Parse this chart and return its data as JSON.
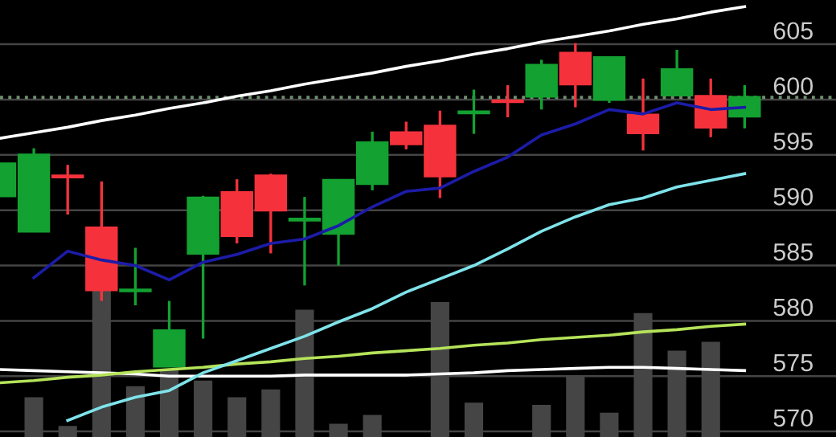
{
  "chart_data": {
    "type": "candlestick",
    "categories": [
      null,
      null,
      null,
      null,
      null,
      null,
      null,
      null,
      null,
      null,
      null,
      null,
      null,
      null,
      null,
      null,
      null,
      null,
      null,
      null,
      null,
      null,
      null
    ],
    "ohlc": [
      [
        591.3,
        594.2,
        591.3,
        594.2
      ],
      [
        588.1,
        595.6,
        588.1,
        595.0
      ],
      [
        593.1,
        594.1,
        589.6,
        593.0
      ],
      [
        588.4,
        592.6,
        581.8,
        582.8
      ],
      [
        582.7,
        586.6,
        581.4,
        582.8
      ],
      [
        575.9,
        581.8,
        575.9,
        579.1
      ],
      [
        586.1,
        591.3,
        578.4,
        591.1
      ],
      [
        591.6,
        592.8,
        587.0,
        587.7
      ],
      [
        593.1,
        593.3,
        586.1,
        590.0
      ],
      [
        589.1,
        591.2,
        583.2,
        589.2
      ],
      [
        587.9,
        592.7,
        585.0,
        592.7
      ],
      [
        592.4,
        597.1,
        591.8,
        596.1
      ],
      [
        597.0,
        598.0,
        595.5,
        596.0
      ],
      [
        597.6,
        599.0,
        591.1,
        593.1
      ],
      [
        598.8,
        600.9,
        596.9,
        598.9
      ],
      [
        599.9,
        601.3,
        598.4,
        599.8
      ],
      [
        600.3,
        603.6,
        599.1,
        603.1
      ],
      [
        604.2,
        605.1,
        599.3,
        601.4
      ],
      [
        600.0,
        603.8,
        599.7,
        603.8
      ],
      [
        598.6,
        601.9,
        595.4,
        597.0
      ],
      [
        600.4,
        604.5,
        600.4,
        602.7
      ],
      [
        600.3,
        601.9,
        596.6,
        597.5
      ],
      [
        598.5,
        601.3,
        597.4,
        600.2
      ]
    ],
    "colors": [
      "#13a131",
      "#13a131",
      "#f5323c",
      "#f5323c",
      "#13a131",
      "#13a131",
      "#13a131",
      "#f5323c",
      "#f5323c",
      "#13a131",
      "#13a131",
      "#13a131",
      "#f5323c",
      "#f5323c",
      "#13a131",
      "#f5323c",
      "#13a131",
      "#f5323c",
      "#13a131",
      "#f5323c",
      "#13a131",
      "#f5323c",
      "#13a131"
    ],
    "series": [
      {
        "type": "bar",
        "color": "#454545",
        "values": [
          null,
          573.1,
          570.5,
          582.8,
          574.1,
          575.6,
          574.6,
          573.1,
          573.8,
          581.0,
          570.7,
          571.5,
          null,
          581.7,
          572.6,
          null,
          572.4,
          575.1,
          571.7,
          580.7,
          577.3,
          578.1,
          null
        ]
      },
      {
        "type": "line",
        "color": "#ffffff",
        "values": [
          575.6,
          575.5,
          575.4,
          575.3,
          575.2,
          575.0,
          575.0,
          575.0,
          575.0,
          575.1,
          575.1,
          575.1,
          575.1,
          575.2,
          575.3,
          575.5,
          575.6,
          575.7,
          575.8,
          575.8,
          575.7,
          575.6,
          575.5
        ]
      },
      {
        "type": "line",
        "color": "#b5e35a",
        "values": [
          574.4,
          574.6,
          574.9,
          575.1,
          575.4,
          575.6,
          575.8,
          576.1,
          576.3,
          576.6,
          576.8,
          577.1,
          577.3,
          577.5,
          577.8,
          578.0,
          578.3,
          578.5,
          578.7,
          579.0,
          579.2,
          579.5,
          579.7
        ]
      },
      {
        "type": "line",
        "color": "#7fe3ea",
        "values": [
          null,
          null,
          571.0,
          572.2,
          573.1,
          573.7,
          575.3,
          576.4,
          577.5,
          578.6,
          579.9,
          581.1,
          582.6,
          583.8,
          585.0,
          586.5,
          588.1,
          589.4,
          590.5,
          591.1,
          592.1,
          592.7,
          593.3
        ]
      },
      {
        "type": "line",
        "color": "#1c1ca8",
        "values": [
          null,
          583.9,
          586.3,
          585.5,
          585.0,
          583.7,
          585.3,
          586.0,
          587.0,
          587.4,
          588.6,
          590.3,
          591.7,
          592.0,
          593.5,
          594.8,
          596.8,
          597.8,
          599.1,
          598.7,
          599.7,
          599.1,
          599.3
        ]
      },
      {
        "type": "line",
        "color": "#ffffff",
        "values": [
          596.5,
          597.0,
          597.5,
          598.1,
          598.6,
          599.2,
          599.7,
          600.3,
          600.8,
          601.4,
          601.9,
          602.4,
          603.0,
          603.5,
          604.1,
          604.6,
          605.2,
          605.7,
          606.2,
          606.8,
          607.3,
          607.9,
          608.4
        ]
      }
    ],
    "ref_lines": [
      {
        "axis": "y",
        "value": 600.2,
        "color": "#6e8f6e",
        "line_style": "dotted"
      }
    ],
    "ylim": [
      569.5,
      609
    ],
    "yticks": [
      570,
      575,
      580,
      585,
      590,
      595,
      600,
      605
    ],
    "grid": "y",
    "tick_labels": "y",
    "legend": false
  }
}
